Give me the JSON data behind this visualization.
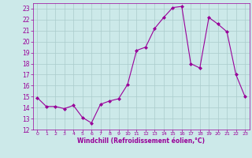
{
  "x": [
    0,
    1,
    2,
    3,
    4,
    5,
    6,
    7,
    8,
    9,
    10,
    11,
    12,
    13,
    14,
    15,
    16,
    17,
    18,
    19,
    20,
    21,
    22,
    23
  ],
  "y": [
    14.9,
    14.1,
    14.1,
    13.9,
    14.2,
    13.1,
    12.6,
    14.3,
    14.6,
    14.8,
    16.1,
    19.2,
    19.5,
    21.2,
    22.2,
    23.1,
    23.2,
    18.0,
    17.6,
    22.2,
    21.6,
    20.9,
    17.0,
    15.0
  ],
  "line_color": "#990099",
  "marker": "D",
  "marker_size": 2,
  "bg_color": "#cce9e9",
  "grid_color": "#aacccc",
  "xlabel": "Windchill (Refroidissement éolien,°C)",
  "xlabel_color": "#990099",
  "tick_color": "#990099",
  "ylim": [
    12,
    23.5
  ],
  "yticks": [
    12,
    13,
    14,
    15,
    16,
    17,
    18,
    19,
    20,
    21,
    22,
    23
  ],
  "xticks": [
    0,
    1,
    2,
    3,
    4,
    5,
    6,
    7,
    8,
    9,
    10,
    11,
    12,
    13,
    14,
    15,
    16,
    17,
    18,
    19,
    20,
    21,
    22,
    23
  ]
}
